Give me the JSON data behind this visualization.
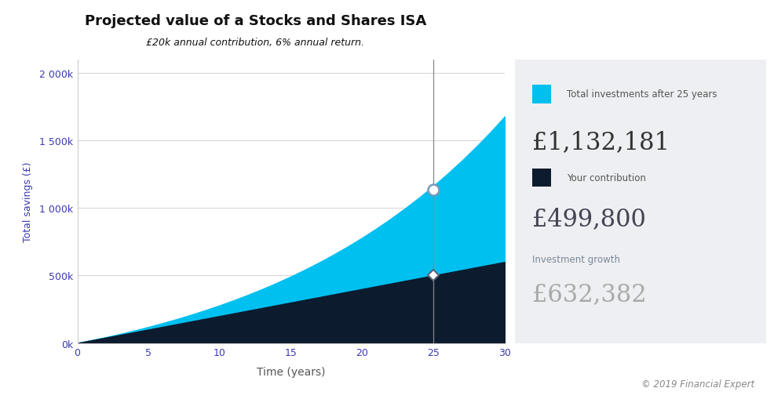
{
  "title": "Projected value of a Stocks and Shares ISA",
  "subtitle": "£20k annual contribution, 6% annual return.",
  "xlabel": "Time (years)",
  "ylabel": "Total savings (£)",
  "annual_contribution": 20000,
  "annual_return": 0.06,
  "years": 30,
  "highlight_year": 25,
  "total_at_25": 1132181,
  "contribution_at_25": 499800,
  "growth_at_25": 632382,
  "color_total": "#00c0f0",
  "color_contribution": "#0d1b2e",
  "color_marker_total": "#7799bb",
  "color_marker_contribution": "#556677",
  "panel_bg": "#eeeff2",
  "chart_bg": "#ffffff",
  "title_color": "#111111",
  "subtitle_color": "#111111",
  "tick_color": "#3a3ab0",
  "ylabel_color": "#3a3ab0",
  "xlabel_color": "#555555",
  "grid_color": "#cccccc",
  "vline_color": "#888888",
  "panel_label_color": "#555555",
  "panel_label_color2": "#7a8898",
  "panel_amount_total": "#333333",
  "panel_amount_contrib": "#444455",
  "panel_amount_growth": "#aaaaaa",
  "copyright_color": "#888888",
  "ylim_min": 0,
  "ylim_max": 2100000,
  "yticks": [
    0,
    500000,
    1000000,
    1500000,
    2000000
  ],
  "ytick_labels": [
    "0k",
    "500k",
    "1 000k",
    "1 500k",
    "2 000k"
  ],
  "xticks": [
    0,
    5,
    10,
    15,
    20,
    25,
    30
  ],
  "panel_total_label": "Total investments after 25 years",
  "panel_total_amount": "£1,132,181",
  "panel_contrib_label": "Your contribution",
  "panel_contrib_amount": "£499,800",
  "panel_growth_label": "Investment growth",
  "panel_growth_amount": "£632,382",
  "copyright_text": "© 2019 Financial Expert"
}
